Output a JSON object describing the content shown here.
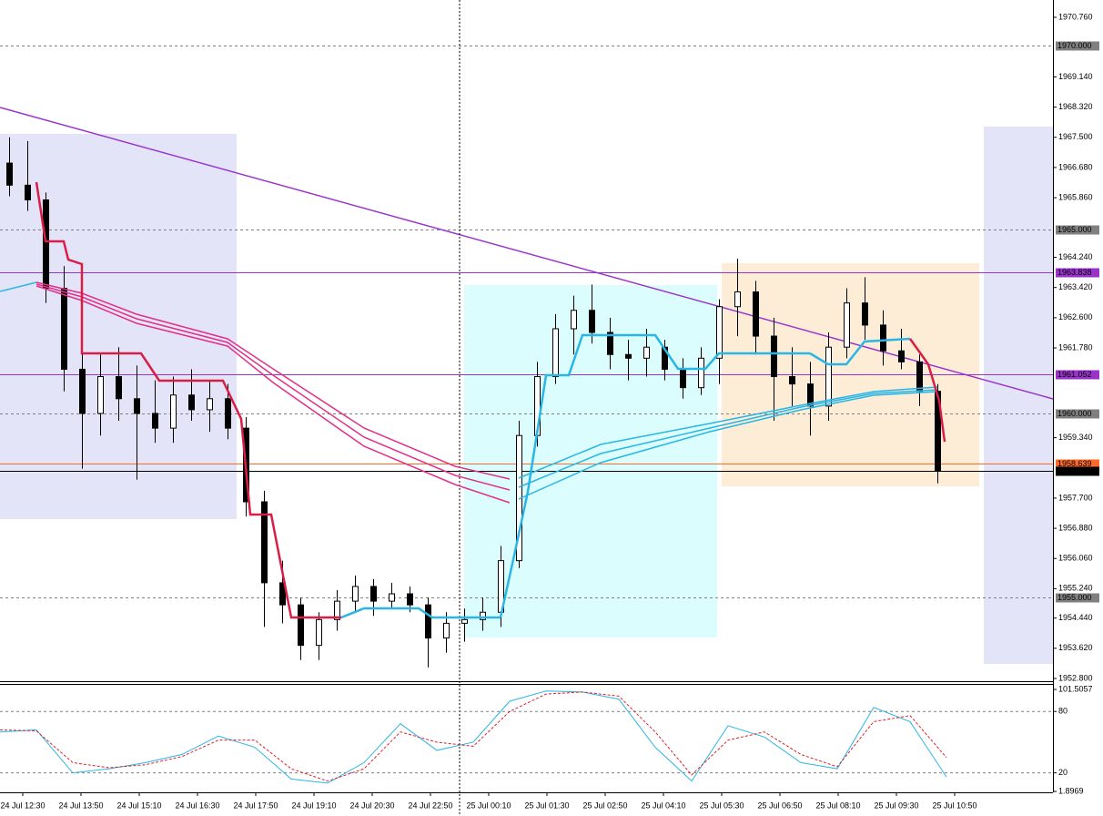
{
  "chart_data": [
    {
      "type": "candlestick",
      "ylim": [
        1952.726,
        1971.23
      ],
      "yticks": [
        {
          "value": 1970.76,
          "label": "1970.760"
        },
        {
          "value": 1969.14,
          "label": "1969.140"
        },
        {
          "value": 1968.32,
          "label": "1968.320"
        },
        {
          "value": 1967.5,
          "label": "1967.500"
        },
        {
          "value": 1966.68,
          "label": "1966.680"
        },
        {
          "value": 1965.86,
          "label": "1965.860"
        },
        {
          "value": 1964.24,
          "label": "1964.240"
        },
        {
          "value": 1963.42,
          "label": "1963.420"
        },
        {
          "value": 1962.6,
          "label": "1962.600"
        },
        {
          "value": 1961.78,
          "label": "1961.780"
        },
        {
          "value": 1959.34,
          "label": "1959.340"
        },
        {
          "value": 1957.7,
          "label": "1957.700"
        },
        {
          "value": 1956.88,
          "label": "1956.880"
        },
        {
          "value": 1956.06,
          "label": "1956.060"
        },
        {
          "value": 1955.24,
          "label": "1955.240"
        },
        {
          "value": 1954.44,
          "label": "1954.440"
        },
        {
          "value": 1953.62,
          "label": "1953.620"
        },
        {
          "value": 1952.8,
          "label": "1952.800"
        }
      ],
      "levels": [
        {
          "value": 1970,
          "label": "1970.000",
          "color": "#808080",
          "style": "dashed"
        },
        {
          "value": 1965,
          "label": "1965.000",
          "color": "#808080",
          "style": "dashed"
        },
        {
          "value": 1963.838,
          "label": "1963.838",
          "color": "#9933cc",
          "style": "solid"
        },
        {
          "value": 1961.052,
          "label": "1961.052",
          "color": "#9933cc",
          "style": "solid"
        },
        {
          "value": 1960,
          "label": "1960.000",
          "color": "#808080",
          "style": "dashed"
        },
        {
          "value": 1958.639,
          "label": "1958.639",
          "color": "#ff6a2a",
          "style": "solid"
        },
        {
          "value": 1958.439,
          "label": "1958.439",
          "color": "#000000",
          "style": "solid"
        },
        {
          "value": 1955,
          "label": "1955.000",
          "color": "#808080",
          "style": "dashed"
        }
      ],
      "xtick_labels": [
        "24 Jul 12:30",
        "24 Jul 13:50",
        "24 Jul 15:10",
        "24 Jul 16:30",
        "24 Jul 17:50",
        "24 Jul 19:10",
        "24 Jul 20:30",
        "24 Jul 22:50",
        "25 Jul 00:10",
        "25 Jul 01:30",
        "25 Jul 02:50",
        "25 Jul 04:10",
        "25 Jul 05:30",
        "25 Jul 06:50",
        "25 Jul 08:10",
        "25 Jul 09:30",
        "25 Jul 10:50"
      ],
      "candles": [
        [
          1966.8,
          1967.5,
          1965.9,
          1966.2
        ],
        [
          1966.2,
          1967.4,
          1965.5,
          1965.8
        ],
        [
          1965.8,
          1966.0,
          1963.0,
          1963.4
        ],
        [
          1963.4,
          1964.0,
          1960.6,
          1961.2
        ],
        [
          1961.2,
          1962.2,
          1958.5,
          1960.0
        ],
        [
          1960.0,
          1961.6,
          1959.4,
          1961.0
        ],
        [
          1961.0,
          1961.8,
          1959.8,
          1960.4
        ],
        [
          1960.4,
          1961.3,
          1958.2,
          1960.0
        ],
        [
          1960.0,
          1960.9,
          1959.2,
          1959.6
        ],
        [
          1959.6,
          1961.0,
          1959.2,
          1960.5
        ],
        [
          1960.5,
          1961.2,
          1959.8,
          1960.1
        ],
        [
          1960.1,
          1960.9,
          1959.5,
          1960.4
        ],
        [
          1960.4,
          1960.8,
          1959.3,
          1959.6
        ],
        [
          1959.6,
          1959.9,
          1957.2,
          1957.6
        ],
        [
          1957.6,
          1957.9,
          1954.2,
          1955.4
        ],
        [
          1955.4,
          1956.0,
          1954.3,
          1954.8
        ],
        [
          1954.8,
          1955.0,
          1953.3,
          1953.7
        ],
        [
          1953.7,
          1954.6,
          1953.3,
          1954.4
        ],
        [
          1954.4,
          1955.2,
          1954.1,
          1954.9
        ],
        [
          1954.9,
          1955.6,
          1954.6,
          1955.3
        ],
        [
          1955.3,
          1955.5,
          1954.5,
          1954.9
        ],
        [
          1954.9,
          1955.4,
          1954.7,
          1955.1
        ],
        [
          1955.1,
          1955.3,
          1954.6,
          1954.8
        ],
        [
          1954.8,
          1955.0,
          1953.1,
          1953.9
        ],
        [
          1953.9,
          1954.6,
          1953.5,
          1954.3
        ],
        [
          1954.3,
          1954.7,
          1953.8,
          1954.4
        ],
        [
          1954.4,
          1955.0,
          1954.1,
          1954.6
        ],
        [
          1954.6,
          1956.4,
          1954.2,
          1956.0
        ],
        [
          1956.0,
          1959.8,
          1955.8,
          1959.4
        ],
        [
          1959.4,
          1961.4,
          1959.1,
          1961.0
        ],
        [
          1961.0,
          1962.7,
          1960.8,
          1962.3
        ],
        [
          1962.3,
          1963.2,
          1961.6,
          1962.8
        ],
        [
          1962.8,
          1963.5,
          1961.9,
          1962.2
        ],
        [
          1962.2,
          1962.6,
          1961.2,
          1961.6
        ],
        [
          1961.6,
          1962.0,
          1960.9,
          1961.5
        ],
        [
          1961.5,
          1962.3,
          1961.0,
          1961.8
        ],
        [
          1961.8,
          1962.0,
          1960.9,
          1961.2
        ],
        [
          1961.2,
          1961.5,
          1960.4,
          1960.7
        ],
        [
          1960.7,
          1961.8,
          1960.5,
          1961.5
        ],
        [
          1961.5,
          1963.1,
          1960.8,
          1962.9
        ],
        [
          1962.9,
          1964.2,
          1962.1,
          1963.3
        ],
        [
          1963.3,
          1963.6,
          1961.6,
          1962.1
        ],
        [
          1962.1,
          1962.6,
          1959.8,
          1961.0
        ],
        [
          1961.0,
          1961.8,
          1960.2,
          1960.8
        ],
        [
          1960.8,
          1961.4,
          1959.4,
          1960.2
        ],
        [
          1960.2,
          1962.2,
          1959.8,
          1961.8
        ],
        [
          1961.8,
          1963.4,
          1961.5,
          1963.0
        ],
        [
          1963.0,
          1963.7,
          1962.0,
          1962.4
        ],
        [
          1962.4,
          1962.8,
          1961.3,
          1961.7
        ],
        [
          1961.7,
          1962.3,
          1961.2,
          1961.4
        ],
        [
          1961.4,
          1961.6,
          1960.2,
          1960.6
        ],
        [
          1960.6,
          1960.8,
          1958.1,
          1958.439
        ]
      ]
    },
    {
      "type": "line",
      "ylim": [
        1.0,
        106.0
      ],
      "yticks": [
        1.8969,
        20,
        80,
        101.5057
      ],
      "series": [
        {
          "color": "#29b6e6",
          "style": "solid",
          "values": [
            60,
            62,
            20,
            24,
            30,
            38,
            56,
            45,
            14,
            10,
            30,
            68,
            42,
            50,
            90,
            100,
            99,
            92,
            45,
            12,
            66,
            55,
            30,
            24,
            84,
            70,
            16
          ]
        },
        {
          "color": "#e0202a",
          "style": "dashed",
          "values": [
            62,
            61,
            30,
            25,
            28,
            36,
            52,
            52,
            24,
            12,
            24,
            60,
            50,
            46,
            80,
            97,
            99,
            95,
            60,
            18,
            52,
            60,
            38,
            26,
            70,
            76,
            35
          ]
        }
      ]
    }
  ]
}
